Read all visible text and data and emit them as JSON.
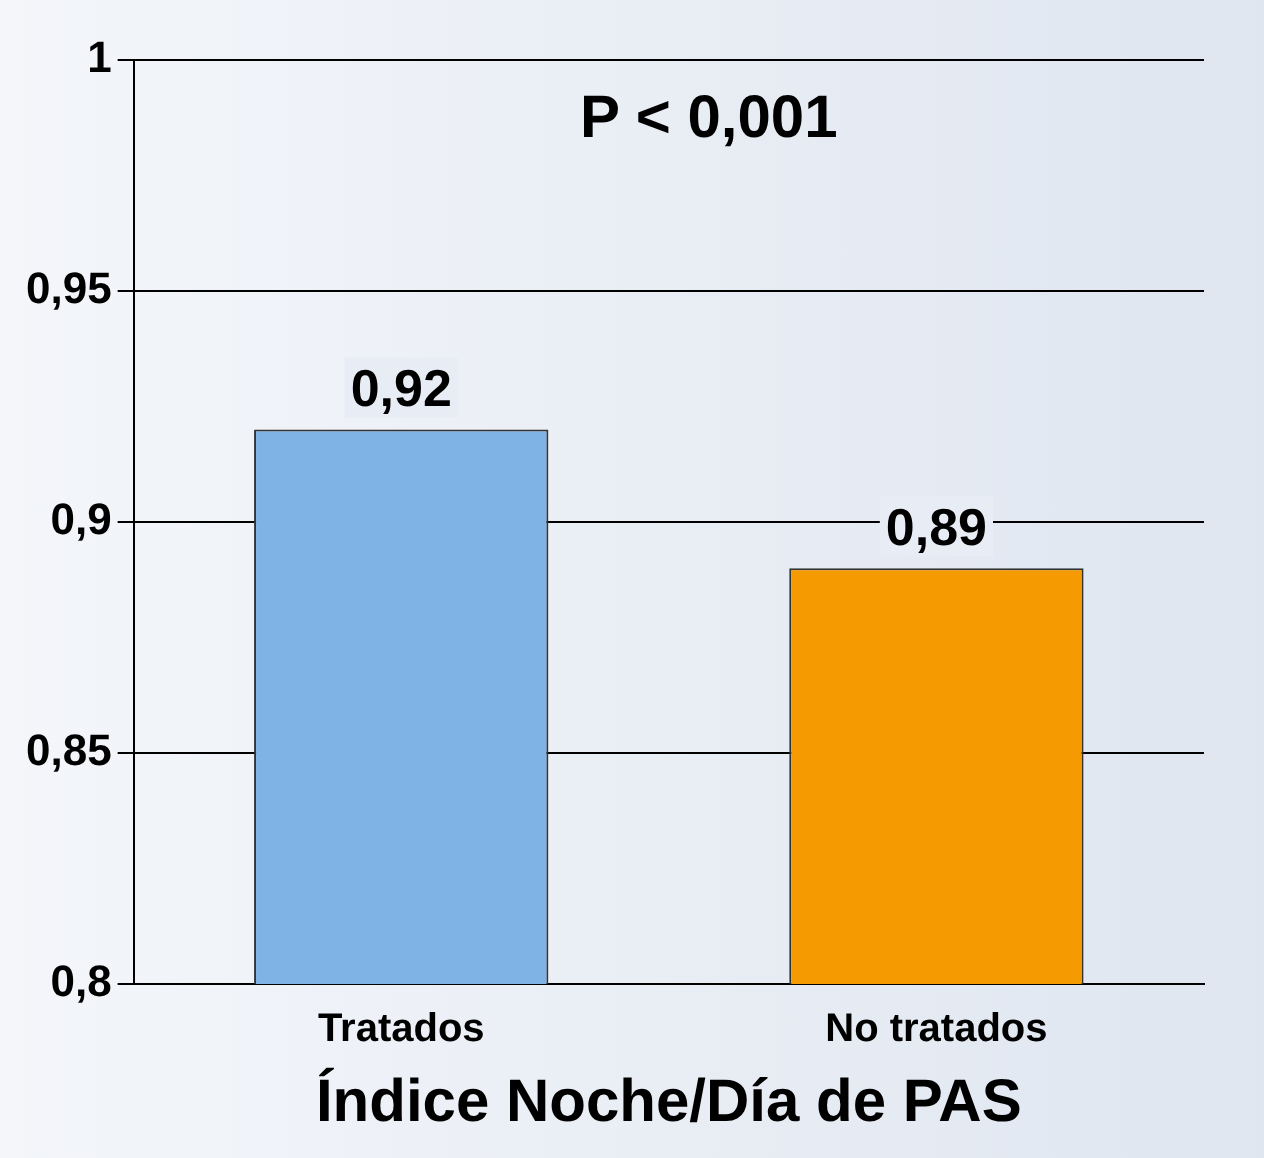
{
  "chart_data": {
    "type": "bar",
    "xlabel": "Índice Noche/Día de PAS",
    "categories": [
      "Tratados",
      "No tratados"
    ],
    "values": [
      0.92,
      0.89
    ],
    "colors": [
      "#7fb2e5",
      "#f59a00"
    ],
    "value_labels": [
      "0,92",
      "0,89"
    ],
    "ylim": [
      0.8,
      1
    ],
    "yticks": [
      {
        "value": 0.8,
        "label": "0,8"
      },
      {
        "value": 0.85,
        "label": "0,85"
      },
      {
        "value": 0.9,
        "label": "0,9"
      },
      {
        "value": 0.95,
        "label": "0,95"
      },
      {
        "value": 1,
        "label": "1"
      }
    ],
    "grid": "y",
    "annotations": [
      "P < 0,001"
    ]
  }
}
